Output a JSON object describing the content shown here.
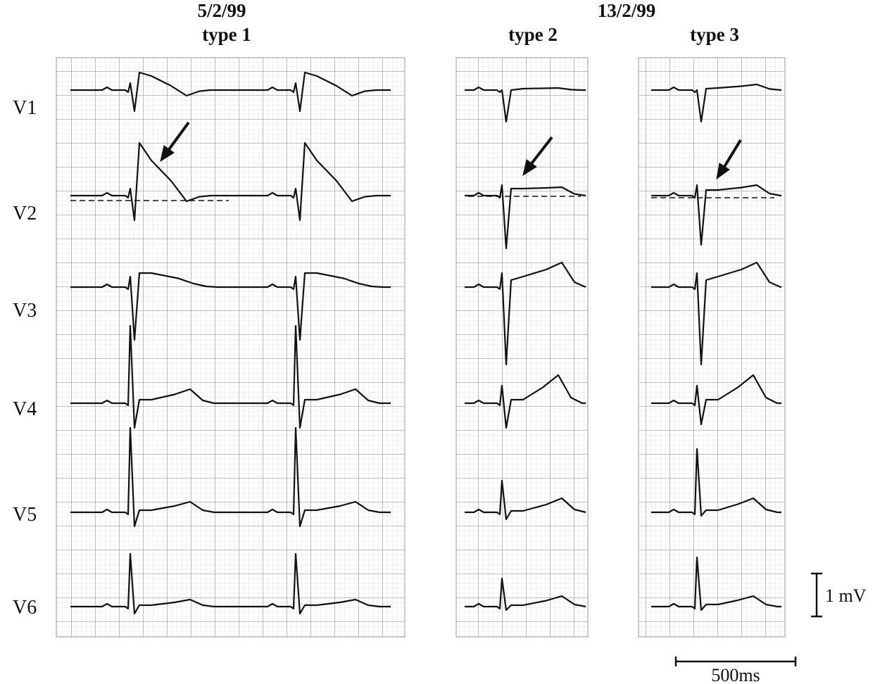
{
  "header": {
    "dates": [
      "5/2/99",
      "13/2/99"
    ],
    "types": [
      "type 1",
      "type 2",
      "type 3"
    ]
  },
  "leads": [
    "V1",
    "V2",
    "V3",
    "V4",
    "V5",
    "V6"
  ],
  "scale": {
    "voltage": "1 mV",
    "time": "500ms"
  }
}
